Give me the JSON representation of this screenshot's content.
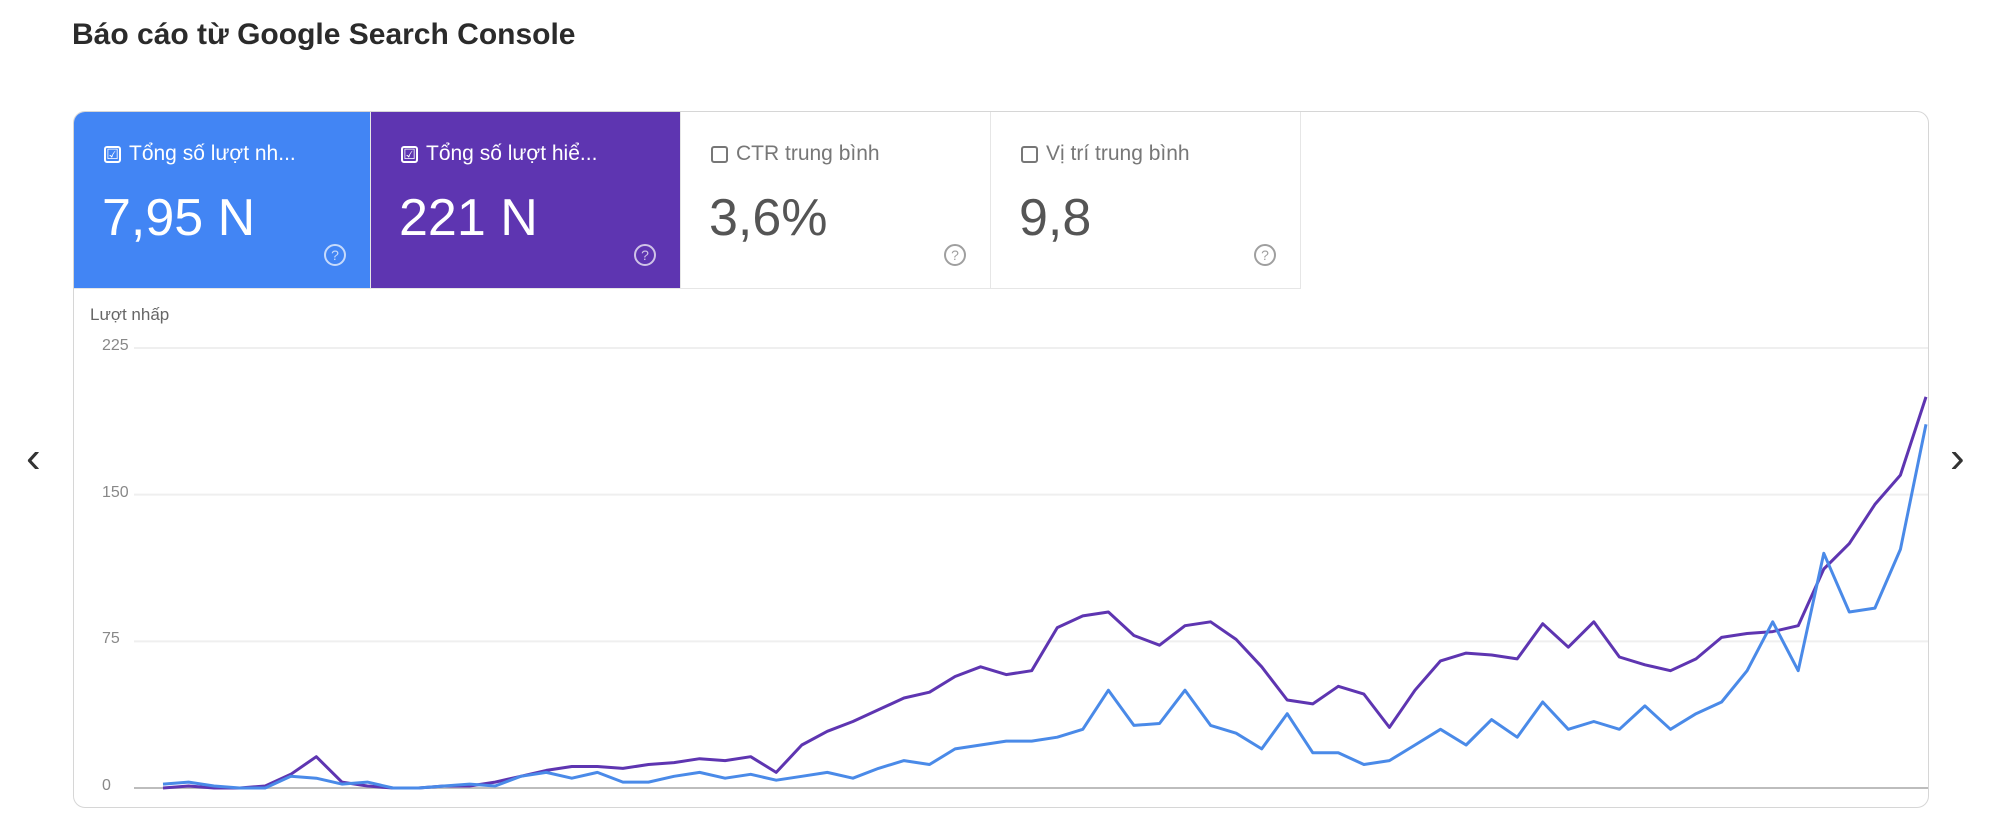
{
  "title": "Báo cáo từ Google Search Console",
  "tiles": [
    {
      "label": "Tổng số lượt nh...",
      "value": "7,95 N",
      "checked": true,
      "color": "#4285f4"
    },
    {
      "label": "Tổng số lượt hiể...",
      "value": "221 N",
      "checked": true,
      "color": "#5e35b1"
    },
    {
      "label": "CTR trung bình",
      "value": "3,6%",
      "checked": false
    },
    {
      "label": "Vị trí trung bình",
      "value": "9,8",
      "checked": false
    }
  ],
  "icons": {
    "checked": "☑",
    "help": "?",
    "prev": "‹",
    "next": "›"
  },
  "chart_data": {
    "type": "line",
    "ylabel": "Lượt nhấp",
    "ylim": [
      0,
      225
    ],
    "yticks": [
      "225",
      "150",
      "75",
      "0"
    ],
    "grid": true,
    "series": [
      {
        "color": "#5e35b1",
        "values": [
          0,
          1,
          0,
          0,
          1,
          7,
          16,
          3,
          1,
          0,
          0,
          1,
          1,
          3,
          6,
          9,
          11,
          11,
          10,
          12,
          13,
          15,
          14,
          16,
          8,
          22,
          29,
          34,
          40,
          46,
          49,
          57,
          62,
          58,
          60,
          82,
          88,
          90,
          78,
          73,
          83,
          85,
          76,
          62,
          45,
          43,
          52,
          48,
          31,
          50,
          65,
          69,
          68,
          66,
          84,
          72,
          85,
          67,
          63,
          60,
          66,
          77,
          79,
          80,
          83,
          112,
          125,
          145,
          160,
          200
        ]
      },
      {
        "color": "#4a8ae8",
        "values": [
          2,
          3,
          1,
          0,
          0,
          6,
          5,
          2,
          3,
          0,
          0,
          1,
          2,
          1,
          6,
          8,
          5,
          8,
          3,
          3,
          6,
          8,
          5,
          7,
          4,
          6,
          8,
          5,
          10,
          14,
          12,
          20,
          22,
          24,
          24,
          26,
          30,
          50,
          32,
          33,
          50,
          32,
          28,
          20,
          38,
          18,
          18,
          12,
          14,
          22,
          30,
          22,
          35,
          26,
          44,
          30,
          34,
          30,
          42,
          30,
          38,
          44,
          60,
          85,
          60,
          120,
          90,
          92,
          122,
          186
        ]
      }
    ]
  }
}
